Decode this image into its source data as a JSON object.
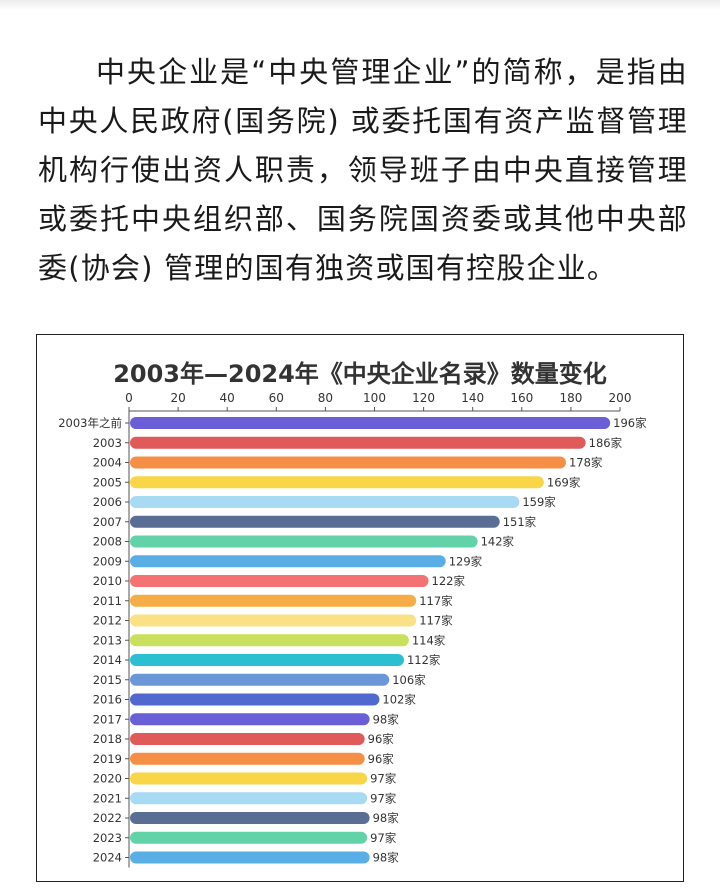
{
  "article": {
    "paragraph": "中央企业是“中央管理企业”的简称，是指由中央人民政府(国务院) 或委托国有资产监督管理机构行使出资人职责，领导班子由中央直接管理或委托中央组织部、国务院国资委或其他中央部委(协会) 管理的国有独资或国有控股企业。"
  },
  "chart_data": {
    "type": "bar",
    "orientation": "horizontal",
    "title": "2003年—2024年《中央企业名录》数量变化",
    "xlabel": "",
    "ylabel": "",
    "xlim": [
      0,
      200
    ],
    "xticks": [
      0,
      20,
      40,
      60,
      80,
      100,
      120,
      140,
      160,
      180,
      200
    ],
    "x_axis_position": "top",
    "grid": false,
    "value_suffix": "家",
    "categories": [
      "2003年之前",
      "2003",
      "2004",
      "2005",
      "2006",
      "2007",
      "2008",
      "2009",
      "2010",
      "2011",
      "2012",
      "2013",
      "2014",
      "2015",
      "2016",
      "2017",
      "2018",
      "2019",
      "2020",
      "2021",
      "2022",
      "2023",
      "2024"
    ],
    "values": [
      196,
      186,
      178,
      169,
      159,
      151,
      142,
      129,
      122,
      117,
      117,
      114,
      112,
      106,
      102,
      98,
      96,
      96,
      97,
      97,
      98,
      97,
      98
    ],
    "colors": [
      "#6b5fd8",
      "#e05a5a",
      "#f58f45",
      "#f9d648",
      "#a8daf3",
      "#5a6e95",
      "#62d2a8",
      "#5aaee6",
      "#f47273",
      "#f6ad45",
      "#fbe185",
      "#c8e05e",
      "#2cbfd2",
      "#6b97d8",
      "#5169cf",
      "#6b5fd8",
      "#e05a5a",
      "#f58f45",
      "#f9d648",
      "#a8daf3",
      "#5a6e95",
      "#62d2a8",
      "#5aaee6"
    ]
  }
}
